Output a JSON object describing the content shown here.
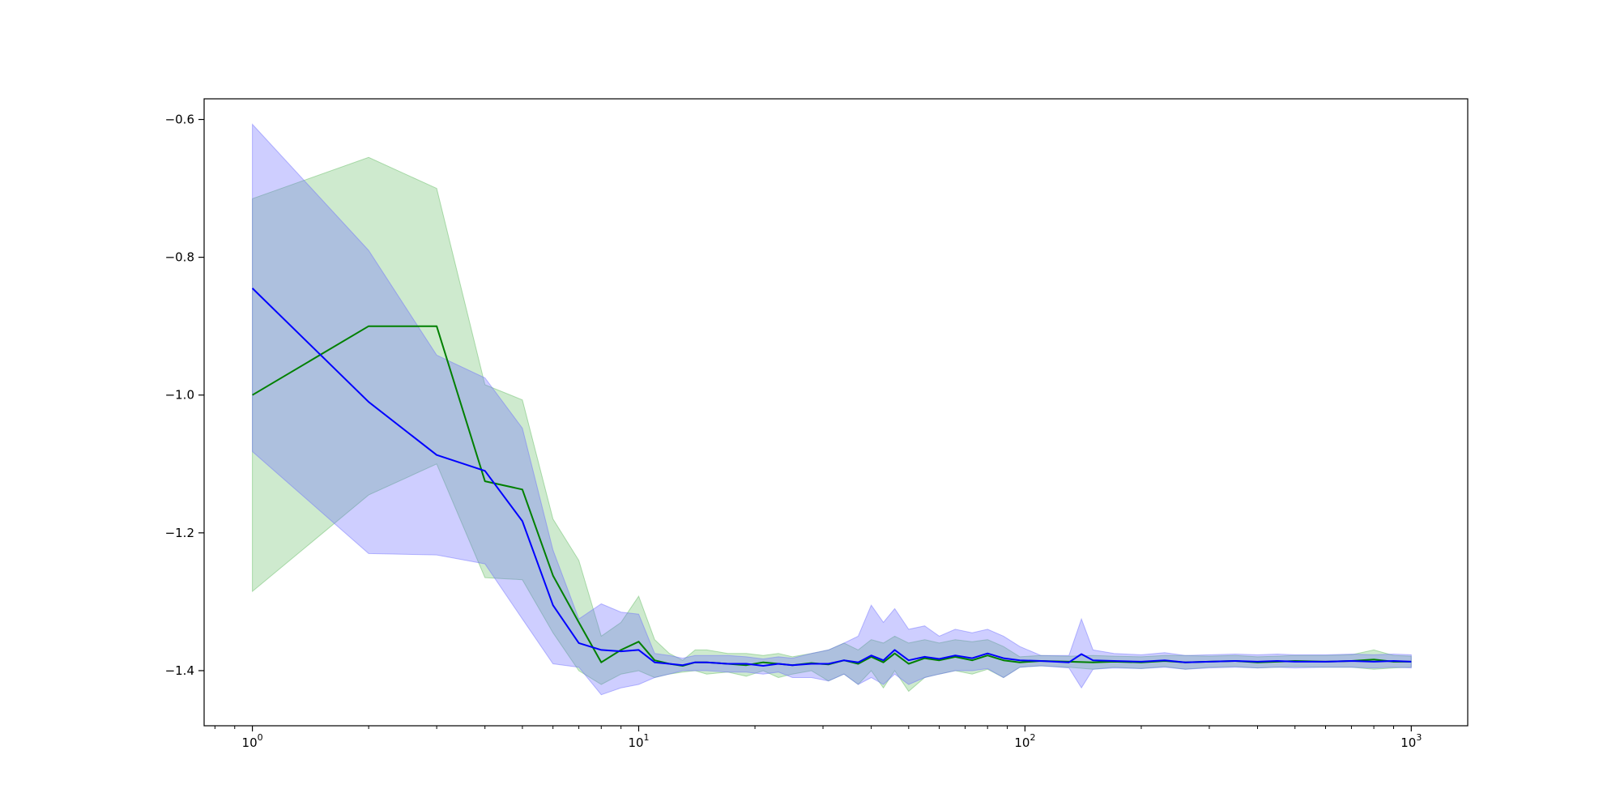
{
  "chart_data": {
    "type": "line",
    "title": "",
    "xlabel": "",
    "ylabel": "",
    "xscale": "log",
    "xlim": [
      0.75,
      1400
    ],
    "ylim": [
      -1.48,
      -0.57
    ],
    "grid": false,
    "legend": "none",
    "x_ticks": [
      {
        "value": 1,
        "base": "10",
        "exp": "0"
      },
      {
        "value": 10,
        "base": "10",
        "exp": "1"
      },
      {
        "value": 100,
        "base": "10",
        "exp": "2"
      },
      {
        "value": 1000,
        "base": "10",
        "exp": "3"
      }
    ],
    "y_ticks": [
      {
        "value": -0.6,
        "label": "−0.6"
      },
      {
        "value": -0.8,
        "label": "−0.8"
      },
      {
        "value": -1.0,
        "label": "−1.0"
      },
      {
        "value": -1.2,
        "label": "−1.2"
      },
      {
        "value": -1.4,
        "label": "−1.4"
      }
    ],
    "series": [
      {
        "color": "#008000",
        "band_color": "#5cb85c",
        "x": [
          1,
          2,
          3,
          4,
          5,
          6,
          7,
          8,
          9,
          10,
          11,
          12,
          13,
          14,
          15,
          17,
          19,
          21,
          23,
          25,
          28,
          31,
          34,
          37,
          40,
          43,
          46,
          50,
          55,
          60,
          66,
          73,
          80,
          88,
          97,
          110,
          130,
          150,
          170,
          200,
          230,
          260,
          300,
          350,
          400,
          450,
          500,
          600,
          700,
          800,
          900,
          1000
        ],
        "y": [
          -1.0,
          -0.9,
          -0.9,
          -1.125,
          -1.137,
          -1.262,
          -1.33,
          -1.388,
          -1.37,
          -1.358,
          -1.385,
          -1.39,
          -1.393,
          -1.388,
          -1.388,
          -1.39,
          -1.392,
          -1.388,
          -1.39,
          -1.392,
          -1.389,
          -1.391,
          -1.385,
          -1.39,
          -1.38,
          -1.388,
          -1.375,
          -1.39,
          -1.382,
          -1.385,
          -1.38,
          -1.385,
          -1.378,
          -1.385,
          -1.388,
          -1.386,
          -1.387,
          -1.388,
          -1.387,
          -1.388,
          -1.386,
          -1.388,
          -1.387,
          -1.386,
          -1.388,
          -1.387,
          -1.386,
          -1.387,
          -1.386,
          -1.384,
          -1.387,
          -1.387
        ],
        "y_lower": [
          -1.285,
          -1.145,
          -1.1,
          -1.265,
          -1.268,
          -1.345,
          -1.4,
          -1.42,
          -1.405,
          -1.4,
          -1.41,
          -1.405,
          -1.402,
          -1.4,
          -1.405,
          -1.402,
          -1.408,
          -1.4,
          -1.41,
          -1.405,
          -1.4,
          -1.415,
          -1.405,
          -1.42,
          -1.4,
          -1.425,
          -1.4,
          -1.43,
          -1.41,
          -1.405,
          -1.4,
          -1.405,
          -1.398,
          -1.41,
          -1.395,
          -1.393,
          -1.395,
          -1.398,
          -1.395,
          -1.397,
          -1.394,
          -1.398,
          -1.395,
          -1.394,
          -1.396,
          -1.395,
          -1.394,
          -1.395,
          -1.395,
          -1.398,
          -1.396,
          -1.395
        ],
        "y_upper": [
          -0.715,
          -0.655,
          -0.7,
          -0.985,
          -1.007,
          -1.18,
          -1.24,
          -1.35,
          -1.33,
          -1.292,
          -1.355,
          -1.375,
          -1.385,
          -1.37,
          -1.37,
          -1.375,
          -1.375,
          -1.378,
          -1.375,
          -1.38,
          -1.375,
          -1.37,
          -1.36,
          -1.37,
          -1.355,
          -1.36,
          -1.35,
          -1.36,
          -1.355,
          -1.36,
          -1.355,
          -1.358,
          -1.355,
          -1.365,
          -1.38,
          -1.378,
          -1.379,
          -1.378,
          -1.379,
          -1.38,
          -1.378,
          -1.378,
          -1.379,
          -1.378,
          -1.38,
          -1.379,
          -1.378,
          -1.378,
          -1.377,
          -1.37,
          -1.378,
          -1.379
        ]
      },
      {
        "color": "#0000ff",
        "band_color": "#6b6bff",
        "x": [
          1,
          2,
          3,
          4,
          5,
          6,
          7,
          8,
          9,
          10,
          11,
          12,
          13,
          14,
          15,
          17,
          19,
          21,
          23,
          25,
          28,
          31,
          34,
          37,
          40,
          43,
          46,
          50,
          55,
          60,
          66,
          73,
          80,
          88,
          97,
          110,
          130,
          140,
          150,
          170,
          200,
          230,
          260,
          300,
          350,
          400,
          450,
          500,
          600,
          700,
          800,
          900,
          1000
        ],
        "y": [
          -0.845,
          -1.01,
          -1.087,
          -1.11,
          -1.183,
          -1.305,
          -1.36,
          -1.37,
          -1.372,
          -1.37,
          -1.388,
          -1.39,
          -1.392,
          -1.388,
          -1.388,
          -1.39,
          -1.39,
          -1.393,
          -1.39,
          -1.392,
          -1.39,
          -1.39,
          -1.385,
          -1.388,
          -1.378,
          -1.385,
          -1.37,
          -1.385,
          -1.38,
          -1.383,
          -1.378,
          -1.382,
          -1.375,
          -1.382,
          -1.385,
          -1.386,
          -1.388,
          -1.376,
          -1.385,
          -1.386,
          -1.387,
          -1.385,
          -1.388,
          -1.387,
          -1.386,
          -1.387,
          -1.386,
          -1.387,
          -1.387,
          -1.386,
          -1.387,
          -1.386,
          -1.387
        ],
        "y_lower": [
          -1.082,
          -1.23,
          -1.232,
          -1.245,
          -1.325,
          -1.39,
          -1.395,
          -1.435,
          -1.425,
          -1.42,
          -1.41,
          -1.405,
          -1.4,
          -1.4,
          -1.4,
          -1.402,
          -1.402,
          -1.405,
          -1.402,
          -1.41,
          -1.41,
          -1.415,
          -1.405,
          -1.42,
          -1.41,
          -1.42,
          -1.405,
          -1.42,
          -1.41,
          -1.405,
          -1.4,
          -1.4,
          -1.397,
          -1.41,
          -1.395,
          -1.393,
          -1.396,
          -1.425,
          -1.398,
          -1.396,
          -1.397,
          -1.395,
          -1.398,
          -1.396,
          -1.395,
          -1.396,
          -1.395,
          -1.396,
          -1.395,
          -1.395,
          -1.396,
          -1.395,
          -1.396
        ],
        "y_upper": [
          -0.607,
          -0.79,
          -0.942,
          -0.975,
          -1.048,
          -1.225,
          -1.325,
          -1.303,
          -1.315,
          -1.318,
          -1.375,
          -1.378,
          -1.382,
          -1.378,
          -1.378,
          -1.378,
          -1.38,
          -1.383,
          -1.38,
          -1.382,
          -1.375,
          -1.37,
          -1.36,
          -1.35,
          -1.305,
          -1.33,
          -1.31,
          -1.34,
          -1.335,
          -1.35,
          -1.34,
          -1.345,
          -1.34,
          -1.35,
          -1.365,
          -1.378,
          -1.378,
          -1.325,
          -1.37,
          -1.375,
          -1.377,
          -1.374,
          -1.378,
          -1.377,
          -1.376,
          -1.377,
          -1.376,
          -1.377,
          -1.377,
          -1.376,
          -1.377,
          -1.376,
          -1.377
        ]
      }
    ]
  }
}
